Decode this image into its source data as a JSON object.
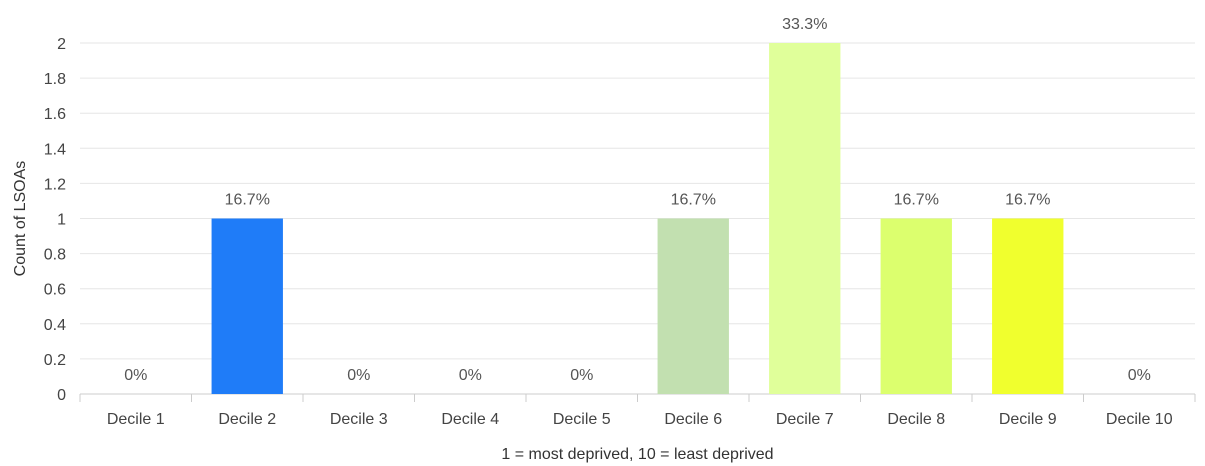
{
  "chart_data": {
    "type": "bar",
    "title": "",
    "xlabel": "1 = most deprived, 10 = least deprived",
    "ylabel": "Count of LSOAs",
    "ylim": [
      0,
      2
    ],
    "yticks": [
      "0",
      "0.2",
      "0.4",
      "0.6",
      "0.8",
      "1",
      "1.2",
      "1.4",
      "1.6",
      "1.8",
      "2"
    ],
    "categories": [
      "Decile 1",
      "Decile 2",
      "Decile 3",
      "Decile 4",
      "Decile 5",
      "Decile 6",
      "Decile 7",
      "Decile 8",
      "Decile 9",
      "Decile 10"
    ],
    "values": [
      0,
      1,
      0,
      0,
      0,
      1,
      2,
      1,
      1,
      0
    ],
    "data_labels": [
      "0%",
      "16.7%",
      "0%",
      "0%",
      "0%",
      "16.7%",
      "33.3%",
      "16.7%",
      "16.7%",
      "0%"
    ],
    "bar_colors": [
      "#cccccc",
      "#1f7cf8",
      "#cccccc",
      "#cccccc",
      "#cccccc",
      "#c2e0b0",
      "#e0ff9a",
      "#dcff6e",
      "#f0ff2e",
      "#cccccc"
    ],
    "grid": true,
    "legend": "none"
  }
}
